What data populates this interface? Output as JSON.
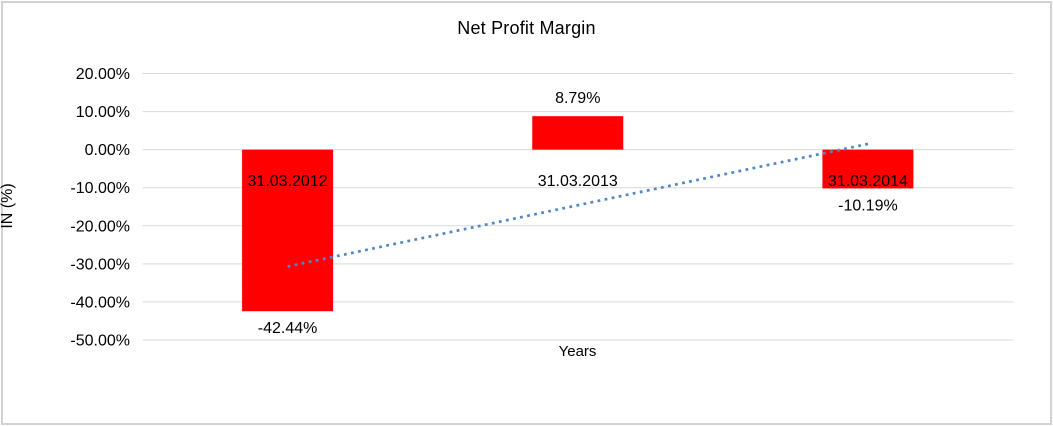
{
  "window": {
    "background": "#ffffff",
    "border_color": "#d2d2d2"
  },
  "chart_data": {
    "type": "bar",
    "title": "Net Profit Margin",
    "xlabel": "Years",
    "ylabel": "IN (%)",
    "categories": [
      "31.03.2012",
      "31.03.2013",
      "31.03.2014"
    ],
    "values": [
      -42.44,
      8.79,
      -10.19
    ],
    "data_labels": [
      "-42.44%",
      "8.79%",
      "-10.19%"
    ],
    "ylim": [
      -50,
      20
    ],
    "y_ticks": [
      {
        "value": 20,
        "label": "20.00%"
      },
      {
        "value": 10,
        "label": "10.00%"
      },
      {
        "value": 0,
        "label": "0.00%"
      },
      {
        "value": -10,
        "label": "-10.00%"
      },
      {
        "value": -20,
        "label": "-20.00%"
      },
      {
        "value": -30,
        "label": "-30.00%"
      },
      {
        "value": -40,
        "label": "-40.00%"
      },
      {
        "value": -50,
        "label": "-50.00%"
      }
    ],
    "grid": true,
    "legend": false,
    "bar_color": "#ff0000",
    "gridline_color": "#d9d9d9",
    "trendline": {
      "type": "linear",
      "style": "dotted",
      "color": "#4f87c7",
      "values": [
        -30.7,
        1.5
      ]
    }
  }
}
